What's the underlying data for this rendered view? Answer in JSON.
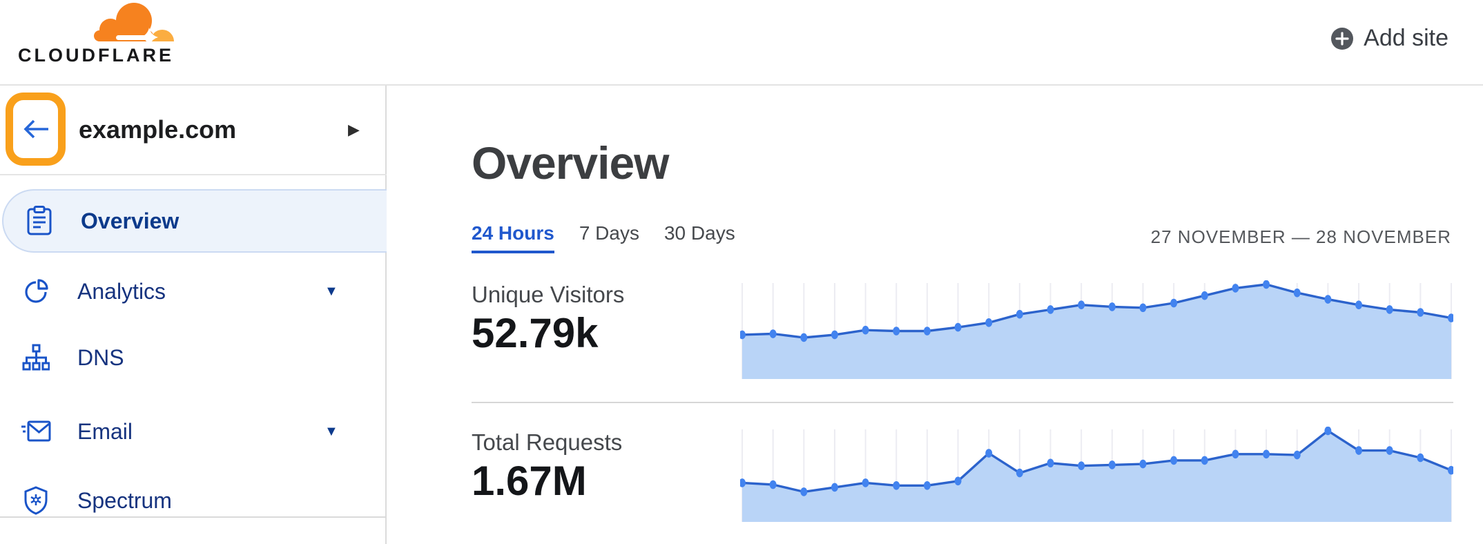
{
  "brand": {
    "name": "CLOUDFLARE"
  },
  "header": {
    "add_site_label": "Add site"
  },
  "sidebar": {
    "site": {
      "domain": "example.com"
    },
    "items": [
      {
        "label": "Overview",
        "icon": "clipboard-icon",
        "selected": true,
        "expandable": false
      },
      {
        "label": "Analytics",
        "icon": "pie-chart-icon",
        "selected": false,
        "expandable": true
      },
      {
        "label": "DNS",
        "icon": "dns-tree-icon",
        "selected": false,
        "expandable": false
      },
      {
        "label": "Email",
        "icon": "email-icon",
        "selected": false,
        "expandable": true
      },
      {
        "label": "Spectrum",
        "icon": "shield-icon",
        "selected": false,
        "expandable": false
      }
    ]
  },
  "icons": {
    "expand_caret": "▼",
    "site_chevron": "▶"
  },
  "main": {
    "title": "Overview",
    "tabs": [
      {
        "label": "24 Hours",
        "active": true
      },
      {
        "label": "7 Days",
        "active": false
      },
      {
        "label": "30 Days",
        "active": false
      }
    ],
    "date_range": "27 NOVEMBER — 28 NOVEMBER",
    "metrics": [
      {
        "label": "Unique Visitors",
        "value": "52.79k"
      },
      {
        "label": "Total Requests",
        "value": "1.67M"
      }
    ]
  },
  "chart_data": [
    {
      "type": "area",
      "title": "Unique Visitors",
      "value_label": "52.79k",
      "period": "24 Hours",
      "points_relative": [
        0.46,
        0.47,
        0.43,
        0.46,
        0.51,
        0.5,
        0.5,
        0.54,
        0.59,
        0.68,
        0.73,
        0.78,
        0.76,
        0.75,
        0.8,
        0.88,
        0.96,
        1.0,
        0.91,
        0.84,
        0.78,
        0.73,
        0.7,
        0.64
      ]
    },
    {
      "type": "area",
      "title": "Total Requests",
      "value_label": "1.67M",
      "period": "24 Hours",
      "points_relative": [
        0.42,
        0.4,
        0.32,
        0.37,
        0.42,
        0.39,
        0.39,
        0.44,
        0.75,
        0.53,
        0.64,
        0.61,
        0.62,
        0.63,
        0.67,
        0.67,
        0.74,
        0.74,
        0.73,
        1.0,
        0.78,
        0.78,
        0.7,
        0.56
      ]
    }
  ],
  "colors": {
    "brand_orange": "#f6821f",
    "brand_orange_light": "#fbad41",
    "annotation_orange": "#f9a01b",
    "accent_blue": "#2058cd",
    "nav_text": "#16337f",
    "nav_selected_bg": "#edf3fb",
    "icon_blue": "#1a54c8",
    "chart_line": "#2c63cc",
    "chart_dot": "#4283ef",
    "chart_fill": "#b9d4f7",
    "chart_grid": "#ececf2"
  }
}
